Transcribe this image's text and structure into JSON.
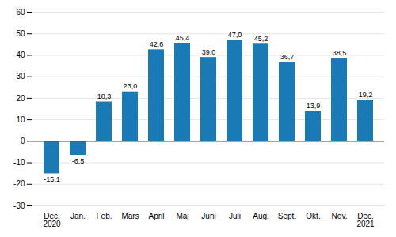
{
  "chart_data": {
    "type": "bar",
    "categories": [
      "Dec.\n2020",
      "Jan.",
      "Feb.",
      "Mars",
      "April",
      "Maj",
      "Juni",
      "Juli",
      "Aug.",
      "Sept.",
      "Okt.",
      "Nov.",
      "Dec.\n2021"
    ],
    "values": [
      -15.1,
      -6.5,
      18.3,
      23.0,
      42.6,
      45.4,
      39.0,
      47.0,
      45.2,
      36.7,
      13.9,
      38.5,
      19.2
    ],
    "value_labels": [
      "-15,1",
      "-6,5",
      "18,3",
      "23,0",
      "42,6",
      "45,4",
      "39,0",
      "47,0",
      "45,2",
      "36,7",
      "13,9",
      "38,5",
      "19,2"
    ],
    "color": "#1a7ab5",
    "ylim": [
      -30,
      60
    ],
    "yticks": [
      -30,
      -20,
      -10,
      0,
      10,
      20,
      30,
      40,
      50,
      60
    ],
    "grid": true,
    "data_labels": true
  }
}
